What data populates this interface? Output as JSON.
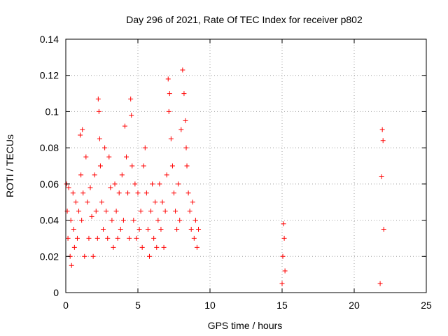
{
  "chart_data": {
    "type": "scatter",
    "title": "Day 296 of 2021, Rate Of TEC Index for receiver p802",
    "xlabel": "GPS time / hours",
    "ylabel": "ROTI / TECUs",
    "xlim": [
      0,
      25
    ],
    "ylim": [
      0,
      0.14
    ],
    "xticks": [
      "0",
      "5",
      "10",
      "15",
      "20",
      "25"
    ],
    "yticks": [
      "0",
      "0.02",
      "0.04",
      "0.06",
      "0.08",
      "0.1",
      "0.12",
      "0.14"
    ],
    "grid": true,
    "marker": "plus",
    "color": "#ff0000",
    "series": [
      {
        "x": [
          0.05,
          0.1,
          0.15,
          0.2,
          0.3,
          0.35,
          0.4,
          0.5,
          0.55,
          0.6,
          0.7,
          0.8,
          0.9,
          1.0,
          1.05,
          1.1,
          1.15,
          1.2,
          1.3,
          1.4,
          1.5,
          1.6,
          1.7,
          1.8,
          1.9,
          2.0,
          2.1,
          2.2,
          2.25,
          2.3,
          2.35,
          2.4,
          2.5,
          2.6,
          2.7,
          2.8,
          2.9,
          3.0,
          3.1,
          3.2,
          3.3,
          3.4,
          3.5,
          3.6,
          3.7,
          3.8,
          3.9,
          4.0,
          4.1,
          4.2,
          4.3,
          4.4,
          4.5,
          4.55,
          4.6,
          4.7,
          4.8,
          4.9,
          5.0,
          5.1,
          5.2,
          5.3,
          5.4,
          5.5,
          5.6,
          5.7,
          5.8,
          5.9,
          6.0,
          6.1,
          6.2,
          6.3,
          6.4,
          6.5,
          6.6,
          6.7,
          6.8,
          6.9,
          7.0,
          7.1,
          7.15,
          7.2,
          7.3,
          7.4,
          7.5,
          7.6,
          7.7,
          7.8,
          7.9,
          8.0,
          8.1,
          8.2,
          8.3,
          8.35,
          8.4,
          8.5,
          8.6,
          8.7,
          8.8,
          8.9,
          9.0,
          9.1,
          9.2
        ],
        "y": [
          0.06,
          0.045,
          0.03,
          0.058,
          0.02,
          0.04,
          0.015,
          0.055,
          0.035,
          0.025,
          0.05,
          0.03,
          0.045,
          0.087,
          0.065,
          0.04,
          0.09,
          0.055,
          0.02,
          0.075,
          0.05,
          0.03,
          0.058,
          0.042,
          0.02,
          0.065,
          0.045,
          0.03,
          0.107,
          0.1,
          0.085,
          0.07,
          0.05,
          0.035,
          0.08,
          0.045,
          0.03,
          0.075,
          0.058,
          0.04,
          0.025,
          0.06,
          0.045,
          0.03,
          0.055,
          0.035,
          0.065,
          0.04,
          0.092,
          0.075,
          0.055,
          0.03,
          0.107,
          0.098,
          0.07,
          0.04,
          0.06,
          0.03,
          0.055,
          0.035,
          0.045,
          0.025,
          0.07,
          0.08,
          0.055,
          0.035,
          0.02,
          0.045,
          0.06,
          0.03,
          0.05,
          0.025,
          0.04,
          0.06,
          0.035,
          0.05,
          0.025,
          0.045,
          0.065,
          0.118,
          0.1,
          0.11,
          0.085,
          0.07,
          0.055,
          0.045,
          0.035,
          0.06,
          0.04,
          0.09,
          0.123,
          0.11,
          0.095,
          0.08,
          0.07,
          0.055,
          0.045,
          0.035,
          0.05,
          0.03,
          0.04,
          0.025,
          0.035
        ]
      },
      {
        "x": [
          15.0,
          15.05,
          15.1,
          15.15,
          15.2
        ],
        "y": [
          0.005,
          0.02,
          0.038,
          0.03,
          0.012
        ]
      },
      {
        "x": [
          21.8,
          21.9,
          21.95,
          22.0,
          22.05
        ],
        "y": [
          0.005,
          0.064,
          0.09,
          0.084,
          0.035
        ]
      }
    ]
  }
}
